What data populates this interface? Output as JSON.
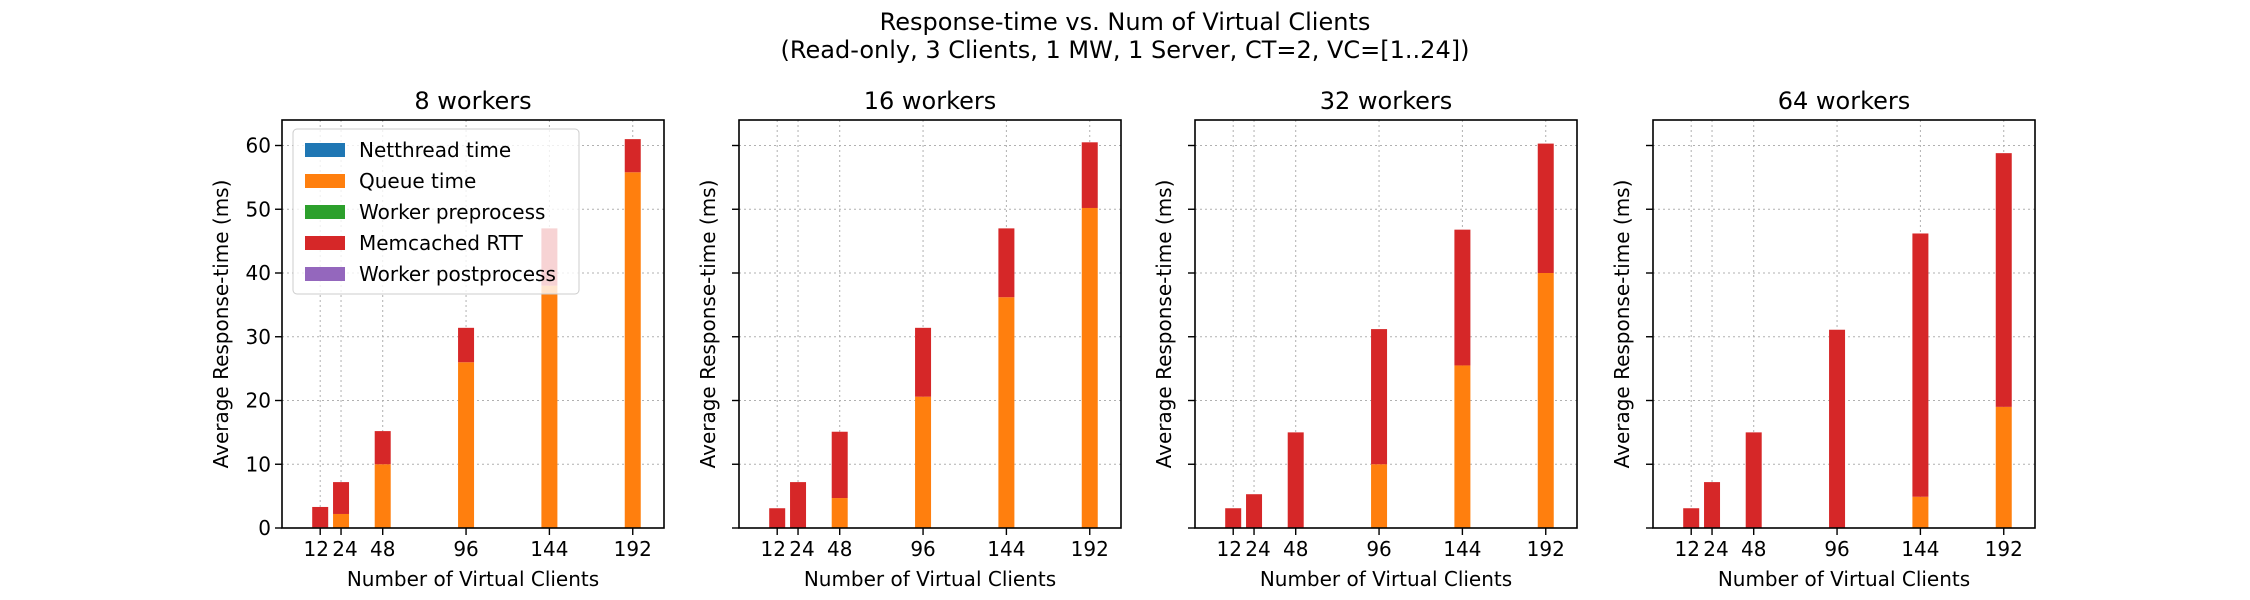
{
  "figure": {
    "title_line1": "Response-time vs. Num of Virtual Clients",
    "title_line2": "(Read-only, 3 Clients, 1 MW, 1 Server, CT=2, VC=[1..24])"
  },
  "colors": {
    "netthread": "#1f77b4",
    "queue": "#ff7f0e",
    "worker_pre": "#2ca02c",
    "memcached": "#d62728",
    "worker_post": "#9467bd"
  },
  "chart_data": [
    {
      "type": "bar",
      "stacked": true,
      "title": "8 workers",
      "xlabel": "Number of Virtual Clients",
      "ylabel": "Average Response-time (ms)",
      "x": [
        12,
        24,
        48,
        96,
        144,
        192
      ],
      "xticklabels": [
        "12",
        "24",
        "48",
        "96",
        "144",
        "192"
      ],
      "ylim": [
        0,
        64
      ],
      "yticks": [
        0,
        10,
        20,
        30,
        40,
        50,
        60
      ],
      "grid": true,
      "legend": "upper-left",
      "series": [
        {
          "name": "Netthread time",
          "values": [
            0,
            0,
            0,
            0,
            0,
            0
          ]
        },
        {
          "name": "Queue time",
          "values": [
            0.1,
            2.2,
            10.0,
            26.0,
            38.0,
            55.8
          ]
        },
        {
          "name": "Worker preprocess",
          "values": [
            0,
            0,
            0,
            0,
            0,
            0
          ]
        },
        {
          "name": "Memcached RTT",
          "values": [
            3.2,
            5.0,
            5.2,
            5.4,
            9.0,
            5.2
          ]
        },
        {
          "name": "Worker postprocess",
          "values": [
            0,
            0,
            0,
            0,
            0,
            0
          ]
        }
      ]
    },
    {
      "type": "bar",
      "stacked": true,
      "title": "16 workers",
      "xlabel": "Number of Virtual Clients",
      "ylabel": "Average Response-time (ms)",
      "x": [
        12,
        24,
        48,
        96,
        144,
        192
      ],
      "xticklabels": [
        "12",
        "24",
        "48",
        "96",
        "144",
        "192"
      ],
      "ylim": [
        0,
        64
      ],
      "yticks": [
        0,
        10,
        20,
        30,
        40,
        50,
        60
      ],
      "grid": true,
      "series": [
        {
          "name": "Netthread time",
          "values": [
            0,
            0,
            0,
            0,
            0,
            0
          ]
        },
        {
          "name": "Queue time",
          "values": [
            0,
            0,
            4.7,
            20.6,
            36.2,
            50.2
          ]
        },
        {
          "name": "Worker preprocess",
          "values": [
            0,
            0,
            0,
            0,
            0,
            0
          ]
        },
        {
          "name": "Memcached RTT",
          "values": [
            3.1,
            7.2,
            10.4,
            10.8,
            10.8,
            10.3
          ]
        },
        {
          "name": "Worker postprocess",
          "values": [
            0,
            0,
            0,
            0,
            0,
            0
          ]
        }
      ]
    },
    {
      "type": "bar",
      "stacked": true,
      "title": "32 workers",
      "xlabel": "Number of Virtual Clients",
      "ylabel": "Average Response-time (ms)",
      "x": [
        12,
        24,
        48,
        96,
        144,
        192
      ],
      "xticklabels": [
        "12",
        "24",
        "48",
        "96",
        "144",
        "192"
      ],
      "ylim": [
        0,
        64
      ],
      "yticks": [
        0,
        10,
        20,
        30,
        40,
        50,
        60
      ],
      "grid": true,
      "series": [
        {
          "name": "Netthread time",
          "values": [
            0,
            0,
            0,
            0,
            0,
            0
          ]
        },
        {
          "name": "Queue time",
          "values": [
            0,
            0,
            0,
            10.0,
            25.5,
            40.0
          ]
        },
        {
          "name": "Worker preprocess",
          "values": [
            0,
            0,
            0,
            0,
            0,
            0
          ]
        },
        {
          "name": "Memcached RTT",
          "values": [
            3.1,
            5.3,
            15.0,
            21.2,
            21.3,
            20.3
          ]
        },
        {
          "name": "Worker postprocess",
          "values": [
            0,
            0,
            0,
            0,
            0,
            0
          ]
        }
      ]
    },
    {
      "type": "bar",
      "stacked": true,
      "title": "64 workers",
      "xlabel": "Number of Virtual Clients",
      "ylabel": "Average Response-time (ms)",
      "x": [
        12,
        24,
        48,
        96,
        144,
        192
      ],
      "xticklabels": [
        "12",
        "24",
        "48",
        "96",
        "144",
        "192"
      ],
      "ylim": [
        0,
        64
      ],
      "yticks": [
        0,
        10,
        20,
        30,
        40,
        50,
        60
      ],
      "grid": true,
      "series": [
        {
          "name": "Netthread time",
          "values": [
            0,
            0,
            0,
            0,
            0,
            0
          ]
        },
        {
          "name": "Queue time",
          "values": [
            0,
            0,
            0,
            0,
            4.9,
            19.0
          ]
        },
        {
          "name": "Worker preprocess",
          "values": [
            0,
            0,
            0,
            0,
            0,
            0
          ]
        },
        {
          "name": "Memcached RTT",
          "values": [
            3.1,
            7.2,
            15.0,
            31.1,
            41.3,
            39.8
          ]
        },
        {
          "name": "Worker postprocess",
          "values": [
            0,
            0,
            0,
            0,
            0,
            0
          ]
        }
      ]
    }
  ]
}
